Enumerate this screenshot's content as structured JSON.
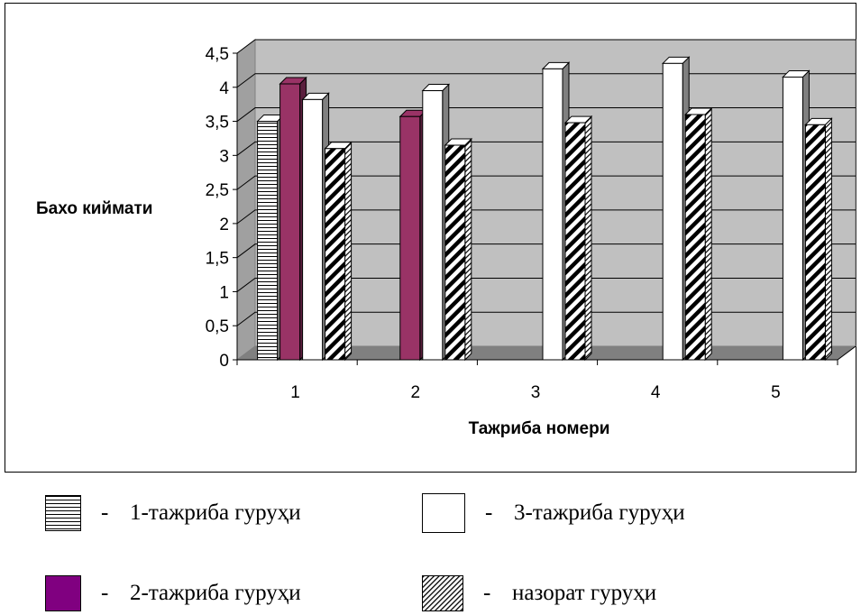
{
  "chart_data": {
    "type": "bar",
    "title": "",
    "xlabel": "Тажриба номери",
    "ylabel": "Бахо киймати",
    "categories": [
      "1",
      "2",
      "3",
      "4",
      "5"
    ],
    "yticks": [
      "0",
      "0,5",
      "1",
      "1,5",
      "2",
      "2,5",
      "3",
      "3,5",
      "4",
      "4,5"
    ],
    "ylim": [
      0,
      4.5
    ],
    "grid": true,
    "series": [
      {
        "name": "1-тажриба гурухи",
        "values": [
          3.5,
          null,
          null,
          null,
          null
        ],
        "style": "horizontal-lines",
        "color": "#ffffff"
      },
      {
        "name": "2-тажриба гурухи",
        "values": [
          4.05,
          3.57,
          null,
          null,
          null
        ],
        "style": "solid",
        "color": "#993366"
      },
      {
        "name": "3-тажриба гурухи",
        "values": [
          3.82,
          3.95,
          4.27,
          4.35,
          4.15
        ],
        "style": "solid",
        "color": "#ffffff"
      },
      {
        "name": "назорат гурухи",
        "values": [
          3.1,
          3.15,
          3.48,
          3.6,
          3.45
        ],
        "style": "diagonal",
        "color": "#ffffff"
      }
    ],
    "plot_background": "#c0c0c0"
  },
  "legend": {
    "items": [
      {
        "dash": "-",
        "label": "1-тажриба гуруҳи"
      },
      {
        "dash": "-",
        "label": "3-тажриба гуруҳи"
      },
      {
        "dash": "-",
        "label": "2-тажриба гуруҳи"
      },
      {
        "dash": "-",
        "label": "назорат гуруҳи"
      }
    ]
  }
}
